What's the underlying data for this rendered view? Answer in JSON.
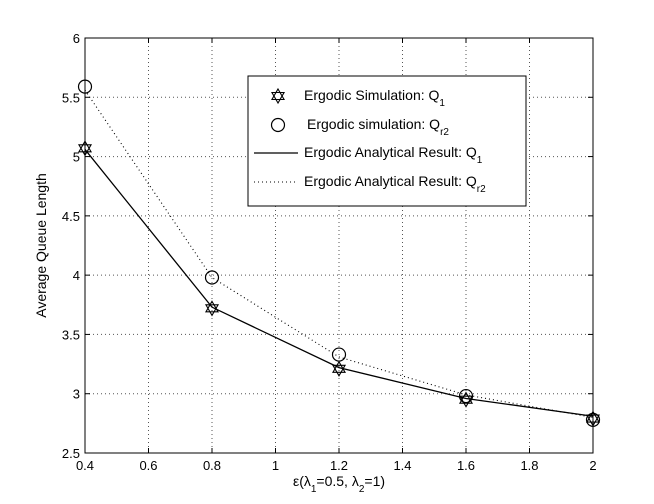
{
  "chart_data": {
    "type": "line",
    "xlabel": "ε(λ1=0.5, λ2=1)",
    "ylabel": "Average Queue Length",
    "xlim": [
      0.4,
      2
    ],
    "ylim": [
      2.5,
      6
    ],
    "x_ticks": [
      "0.4",
      "0.6",
      "0.8",
      "1",
      "1.2",
      "1.4",
      "1.6",
      "1.8",
      "2"
    ],
    "y_ticks": [
      "2.5",
      "3",
      "3.5",
      "4",
      "4.5",
      "5",
      "5.5",
      "6"
    ],
    "grid": true,
    "legend_position": "top-right",
    "series": [
      {
        "name": "Ergodic Simulation: Q1",
        "style": "markers",
        "marker": "hexagram",
        "color": "#000000",
        "x": [
          0.4,
          0.8,
          1.2,
          1.6,
          2.0
        ],
        "y": [
          5.07,
          3.72,
          3.21,
          2.95,
          2.79
        ]
      },
      {
        "name": "Ergodic simulation: Qr2",
        "style": "markers",
        "marker": "circle",
        "color": "#000000",
        "x": [
          0.4,
          0.8,
          1.2,
          1.6,
          2.0
        ],
        "y": [
          5.59,
          3.98,
          3.33,
          2.98,
          2.78
        ]
      },
      {
        "name": "Ergodic Analytical Result: Q1",
        "style": "solid",
        "color": "#000000",
        "x": [
          0.4,
          0.8,
          1.2,
          1.6,
          2.0
        ],
        "y": [
          5.06,
          3.73,
          3.22,
          2.96,
          2.81
        ]
      },
      {
        "name": "Ergodic Analytical Result: Qr2",
        "style": "dotted",
        "color": "#000000",
        "x": [
          0.4,
          0.8,
          1.2,
          1.6,
          2.0
        ],
        "y": [
          5.56,
          3.98,
          3.31,
          2.99,
          2.8
        ]
      }
    ]
  }
}
